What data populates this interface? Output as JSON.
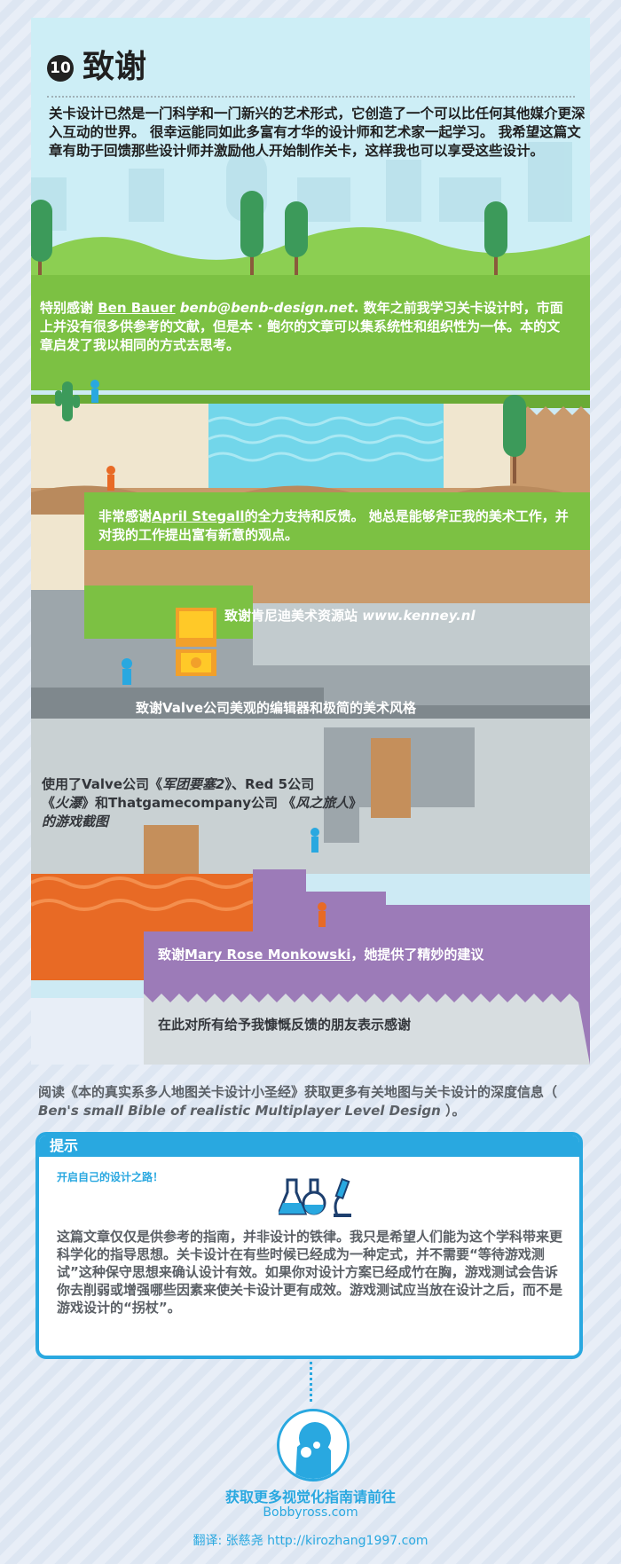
{
  "section": {
    "number": "10",
    "title": "致谢",
    "intro": "关卡设计已然是一门科学和一门新兴的艺术形式，它创造了一个可以比任何其他媒介更深入互动的世界。 很幸运能同如此多富有才华的设计师和艺术家一起学习。 我希望这篇文章有助于回馈那些设计师并激励他人开始制作关卡，这样我也可以享受这些设计。"
  },
  "thanks": {
    "ben": {
      "prefix": "特别感谢 ",
      "name": "Ben Bauer",
      "email": "benb@benb-design.net",
      "rest": ". 数年之前我学习关卡设计时，市面上并没有很多供参考的文献，但是本 · 鲍尔的文章可以集系统性和组织性为一体。本的文章启发了我以相同的方式去思考。"
    },
    "april": {
      "prefix": "非常感谢",
      "name": "April Stegall",
      "rest": "的全力支持和反馈。 她总是能够斧正我的美术工作，并对我的工作提出富有新意的观点。"
    },
    "kenney": {
      "text": "致谢肯尼迪美术资源站 ",
      "site": "www.kenney.nl"
    },
    "valve": "致谢Valve公司美观的编辑器和极简的美术风格",
    "screenshots": {
      "line1a": "使用了Valve公司《",
      "line1b": "军团要塞2",
      "line1c": "》、Red 5公司",
      "line2a": "《",
      "line2b": "火瀑",
      "line2c": "》和Thatgamecompany公司 《",
      "line2d": "风之旅人",
      "line2e": "》",
      "line3": "的游戏截图"
    },
    "mary": {
      "prefix": "致谢",
      "name": "Mary Rose Monkowski",
      "rest": "，她提供了精妙的建议"
    },
    "friends": "在此对所有给予我慷慨反馈的朋友表示感谢"
  },
  "read_more": {
    "text": "阅读《本的真实系多人地图关卡设计小圣经》获取更多有关地图与关卡设计的深度信息（ ",
    "english": "Ben's small Bible of realistic Multiplayer Level Design",
    "end": " ）。"
  },
  "tip": {
    "heading": "提示",
    "subtitle": "开启自己的设计之路！",
    "icons": [
      "flask-icon",
      "microscope-icon"
    ],
    "body": "这篇文章仅仅是供参考的指南，并非设计的铁律。我只是希望人们能为这个学科带来更科学化的指导思想。关卡设计在有些时候已经成为一种定式，并不需要“等待游戏测试”这种保守思想来确认设计有效。如果你对设计方案已经成竹在胸，游戏测试会告诉你去削弱或增强哪些因素来使关卡设计更有成效。游戏测试应当放在设计之后，而不是游戏设计的“拐杖”。"
  },
  "footer": {
    "cta": "获取更多视觉化指南请前往",
    "site": "Bobbyross.com",
    "credit": "翻译:  张慈尧  http://kirozhang1997.com"
  },
  "colors": {
    "accent": "#29a8e0",
    "grass": "#7cc143",
    "water": "#72d6ea",
    "dirt": "#c99a6c",
    "stone": "#9da6ab",
    "lava": "#e86a25",
    "purple": "#9c7bb8"
  }
}
